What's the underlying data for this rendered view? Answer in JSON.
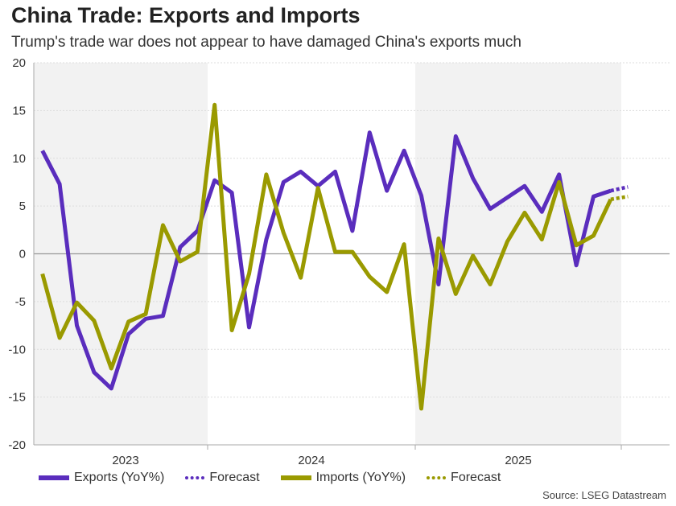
{
  "chart_data": {
    "type": "line",
    "title": "China Trade: Exports and Imports",
    "subtitle": "Trump's trade war does not appear to have damaged China's exports much",
    "xlabel": "",
    "ylabel": "",
    "ylim": [
      -20,
      20
    ],
    "yticks": [
      "20",
      "15",
      "10",
      "5",
      "0",
      "-5",
      "-10",
      "-15",
      "-20"
    ],
    "ytick_values": [
      20,
      15,
      10,
      5,
      0,
      -5,
      -10,
      -15,
      -20
    ],
    "years": [
      "2023",
      "2024",
      "2025"
    ],
    "shaded_years": [
      "2023",
      "2025"
    ],
    "grid": true,
    "legend_placement": "bottom",
    "series": [
      {
        "name": "Exports (YoY%)",
        "color": "#5a2dbd",
        "style": "solid",
        "values": [
          10.8,
          7.3,
          -7.5,
          -12.4,
          -14.1,
          -8.4,
          -6.8,
          -6.5,
          0.7,
          2.4,
          7.7,
          6.4,
          -7.7,
          1.5,
          7.5,
          8.6,
          7.1,
          8.6,
          2.4,
          12.7,
          6.6,
          10.8,
          6.1,
          -3.2,
          12.3,
          7.9,
          4.7,
          5.9,
          7.1,
          4.4,
          8.3,
          -1.2,
          6.0,
          6.6
        ]
      },
      {
        "name": "Forecast",
        "color": "#5a2dbd",
        "style": "dotted",
        "start_index": 33,
        "values": [
          6.6,
          7.0
        ]
      },
      {
        "name": "Imports (YoY%)",
        "color": "#9a9a00",
        "style": "solid",
        "values": [
          -2.1,
          -8.8,
          -5.1,
          -7.0,
          -12.0,
          -7.1,
          -6.3,
          3.0,
          -0.8,
          0.2,
          15.6,
          -8.0,
          -2.1,
          8.3,
          2.2,
          -2.5,
          6.9,
          0.2,
          0.2,
          -2.4,
          -4.0,
          1.0,
          -16.2,
          1.6,
          -4.2,
          -0.2,
          -3.2,
          1.3,
          4.3,
          1.5,
          7.5,
          0.9,
          1.9,
          5.7
        ]
      },
      {
        "name": "Forecast",
        "color": "#9a9a00",
        "style": "dotted",
        "start_index": 33,
        "values": [
          5.7,
          6.0
        ]
      }
    ],
    "source": "Source: LSEG Datastream"
  }
}
